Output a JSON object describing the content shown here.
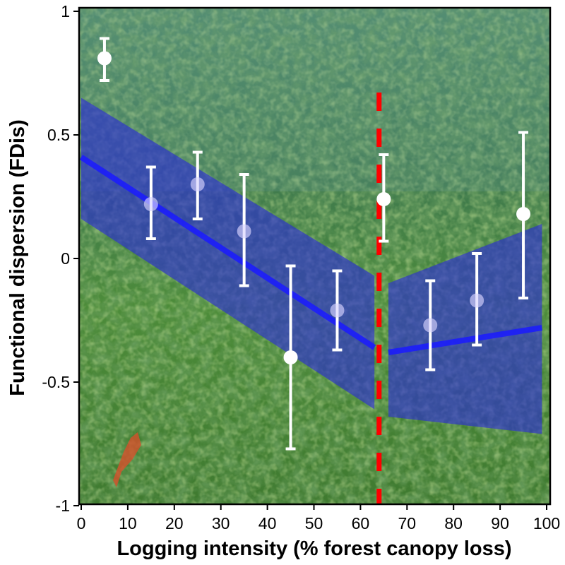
{
  "chart_data": {
    "type": "scatter",
    "title": "",
    "xlabel": "Logging intensity (% forest canopy loss)",
    "ylabel": "Functional dispersion (FDis)",
    "xlim": [
      0,
      100
    ],
    "ylim": [
      -1,
      1
    ],
    "x_ticks": [
      0,
      10,
      20,
      30,
      40,
      50,
      60,
      70,
      80,
      90,
      100
    ],
    "y_ticks": [
      1,
      0.5,
      0,
      -0.5,
      -1
    ],
    "y_tick_labels": [
      "1",
      "0.5",
      "0",
      "-0.5",
      "-1"
    ],
    "grid": false,
    "legend": null,
    "background": "forest canopy photograph",
    "points": [
      {
        "x": 5,
        "y": 0.81,
        "lower": 0.72,
        "upper": 0.89,
        "highlight": "white"
      },
      {
        "x": 15,
        "y": 0.22,
        "lower": 0.08,
        "upper": 0.37,
        "highlight": "faded"
      },
      {
        "x": 25,
        "y": 0.3,
        "lower": 0.16,
        "upper": 0.43,
        "highlight": "faded"
      },
      {
        "x": 35,
        "y": 0.11,
        "lower": -0.11,
        "upper": 0.34,
        "highlight": "faded"
      },
      {
        "x": 45,
        "y": -0.4,
        "lower": -0.77,
        "upper": -0.03,
        "highlight": "white"
      },
      {
        "x": 55,
        "y": -0.21,
        "lower": -0.37,
        "upper": -0.05,
        "highlight": "faded"
      },
      {
        "x": 65,
        "y": 0.24,
        "lower": 0.07,
        "upper": 0.42,
        "highlight": "white"
      },
      {
        "x": 75,
        "y": -0.27,
        "lower": -0.45,
        "upper": -0.09,
        "highlight": "faded"
      },
      {
        "x": 85,
        "y": -0.17,
        "lower": -0.35,
        "upper": 0.02,
        "highlight": "faded"
      },
      {
        "x": 95,
        "y": 0.18,
        "lower": -0.16,
        "upper": 0.51,
        "highlight": "white"
      }
    ],
    "fit_segments": [
      {
        "name": "pre-threshold fit",
        "x": [
          0,
          63
        ],
        "fit": [
          0.41,
          -0.36
        ],
        "ci_upper": [
          0.65,
          -0.07
        ],
        "ci_lower": [
          0.16,
          -0.61
        ]
      },
      {
        "name": "post-threshold fit",
        "x": [
          66,
          99
        ],
        "fit": [
          -0.38,
          -0.28
        ],
        "ci_upper": [
          -0.1,
          0.14
        ],
        "ci_lower": [
          -0.64,
          -0.71
        ]
      }
    ],
    "threshold": {
      "x": 64,
      "style": "dashed",
      "color": "#ff0000"
    }
  },
  "colors": {
    "fit_line": "#1a1aff",
    "ci_band": "#2a2ad8",
    "points": "#ffffff",
    "threshold": "#ff0000",
    "axis": "#000000"
  }
}
